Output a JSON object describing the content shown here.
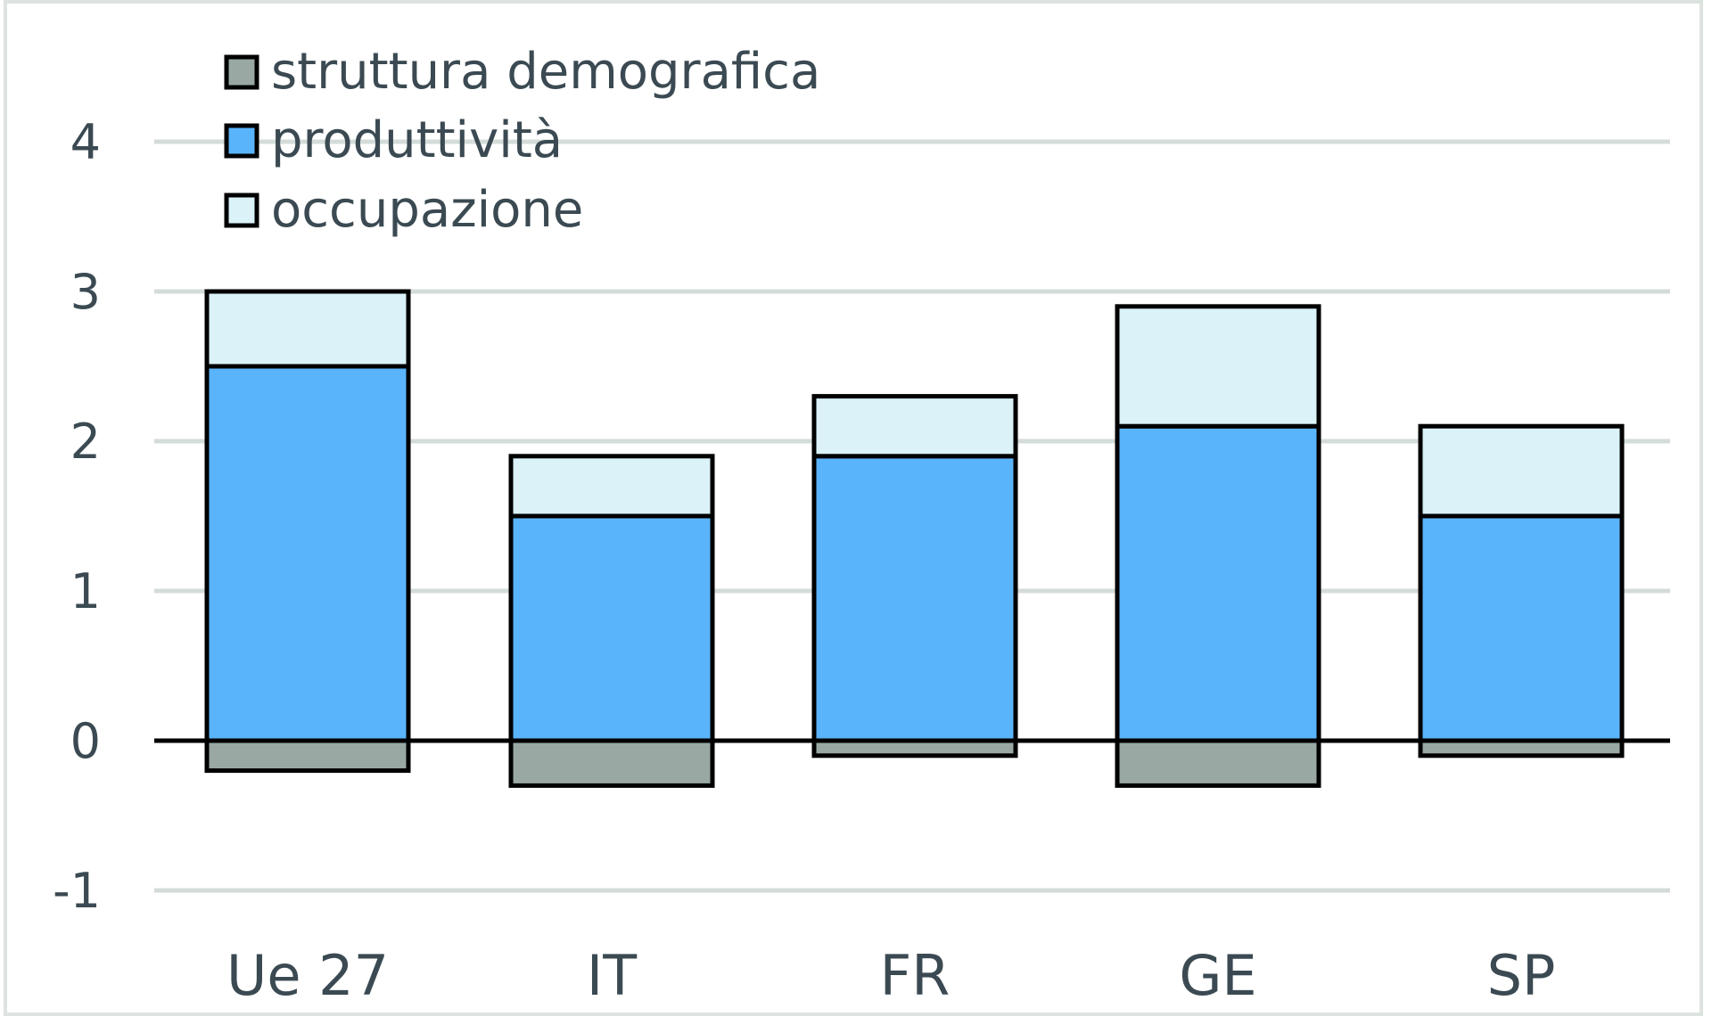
{
  "chart_data": {
    "type": "bar",
    "stacked": true,
    "categories": [
      "Ue 27",
      "IT",
      "FR",
      "GE",
      "SP"
    ],
    "series": [
      {
        "name": "struttura demografica",
        "color": "#99a8a3",
        "values": [
          -0.2,
          -0.3,
          -0.1,
          -0.3,
          -0.1
        ]
      },
      {
        "name": "produttività",
        "color": "#5ab4fb",
        "values": [
          2.5,
          1.5,
          1.9,
          2.1,
          1.5
        ]
      },
      {
        "name": "occupazione",
        "color": "#daf2f8",
        "values": [
          0.5,
          0.4,
          0.4,
          0.8,
          0.6
        ]
      }
    ],
    "title": "",
    "xlabel": "",
    "ylabel": "",
    "ylim": [
      -1,
      4
    ],
    "yticks": [
      "-1",
      "0",
      "1",
      "2",
      "3",
      "4"
    ],
    "grid": true,
    "gridColor": "#d4dcd9",
    "legend": "top-left",
    "axisColor": "#000000"
  }
}
